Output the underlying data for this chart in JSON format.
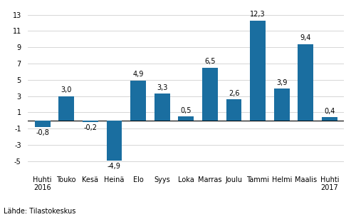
{
  "categories": [
    "Huhti\n2016",
    "Touko",
    "Kesä",
    "Heinä",
    "Elo",
    "Syys",
    "Loka",
    "Marras",
    "Joulu",
    "Tammi",
    "Helmi",
    "Maalis",
    "Huhti\n2017"
  ],
  "values": [
    -0.8,
    3.0,
    -0.2,
    -4.9,
    4.9,
    3.3,
    0.5,
    6.5,
    2.6,
    12.3,
    3.9,
    9.4,
    0.4
  ],
  "value_labels": [
    "-0,8",
    "3,0",
    "-0,2",
    "-4,9",
    "4,9",
    "3,3",
    "0,5",
    "6,5",
    "2,6",
    "12,3",
    "3,9",
    "9,4",
    "0,4"
  ],
  "bar_color": "#1a6ea0",
  "ylim": [
    -6,
    14
  ],
  "yticks": [
    -5,
    -3,
    -1,
    1,
    3,
    5,
    7,
    9,
    11,
    13
  ],
  "source_text": "Lähde: Tilastokeskus",
  "background_color": "#ffffff",
  "label_fontsize": 7.0,
  "value_fontsize": 7.0,
  "bar_width": 0.65
}
